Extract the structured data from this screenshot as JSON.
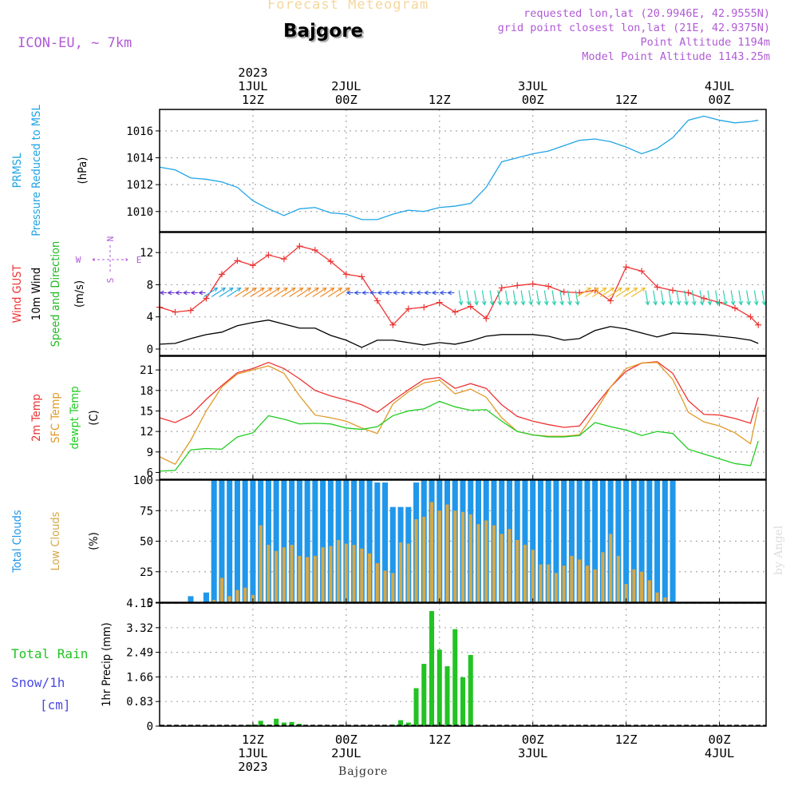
{
  "header": {
    "title": "Forecast Meteogram",
    "station": "Bajgore",
    "model": "ICON-EU, ~ 7km",
    "requested": "requested lon,lat (20.9946E, 42.9555N)",
    "grid_point": "grid point closest lon,lat (21E, 42.9375N)",
    "point_altitude": "Point Altitude 1194m",
    "model_altitude": "Model Point Altitude 1143.25m"
  },
  "watermark": "by Angel",
  "footer_station": "Bajgore",
  "colors": {
    "prmsl": "#1fa5e6",
    "gust": "#ee3333",
    "wind": "#000000",
    "wind_dir": "#22bb22",
    "temp2m": "#ee3333",
    "sfc": "#e09a2a",
    "dewpt": "#22cc22",
    "total_clouds": "#1f97ea",
    "low_clouds": "#d4a84a",
    "rain": "#22c322",
    "snow": "#4b4be6",
    "compass": "#b05ad6",
    "grid": "#999999"
  },
  "time_axis": {
    "start_hour": 0,
    "end_hour": 78,
    "top_labels": [
      {
        "hour": 12,
        "lines": [
          "2023",
          "1JUL",
          "12Z"
        ]
      },
      {
        "hour": 24,
        "lines": [
          "2JUL",
          "00Z"
        ]
      },
      {
        "hour": 36,
        "lines": [
          "12Z"
        ]
      },
      {
        "hour": 48,
        "lines": [
          "3JUL",
          "00Z"
        ]
      },
      {
        "hour": 60,
        "lines": [
          "12Z"
        ]
      },
      {
        "hour": 72,
        "lines": [
          "4JUL",
          "00Z"
        ]
      }
    ],
    "bottom_labels": [
      {
        "hour": 12,
        "lines": [
          "12Z",
          "1JUL",
          "2023"
        ]
      },
      {
        "hour": 24,
        "lines": [
          "00Z",
          "2JUL"
        ]
      },
      {
        "hour": 36,
        "lines": [
          "12Z"
        ]
      },
      {
        "hour": 48,
        "lines": [
          "00Z",
          "3JUL"
        ]
      },
      {
        "hour": 60,
        "lines": [
          "12Z"
        ]
      },
      {
        "hour": 72,
        "lines": [
          "00Z",
          "4JUL"
        ]
      }
    ]
  },
  "chart_data": [
    {
      "type": "line",
      "title": "PRMSL Pressure Reduced to MSL",
      "ylabel_lines": [
        {
          "text": "PRMSL",
          "color": "#1fa5e6"
        },
        {
          "text": "Pressure Reduced to MSL",
          "color": "#1fa5e6"
        },
        {
          "text": "(hPa)",
          "color": "#000000"
        }
      ],
      "ylim": [
        1008.5,
        1017.6
      ],
      "yticks": [
        "1010",
        "1012",
        "1014",
        "1016"
      ],
      "x": [
        0,
        2,
        4,
        6,
        8,
        10,
        12,
        14,
        16,
        18,
        20,
        22,
        24,
        26,
        28,
        30,
        32,
        34,
        36,
        38,
        40,
        42,
        44,
        46,
        48,
        50,
        52,
        54,
        56,
        58,
        60,
        62,
        64,
        66,
        68,
        70,
        72,
        74,
        76,
        77
      ],
      "series": [
        {
          "name": "PRMSL",
          "color": "#1fa5e6",
          "values": [
            1013.3,
            1013.1,
            1012.5,
            1012.4,
            1012.2,
            1011.8,
            1010.8,
            1010.2,
            1009.7,
            1010.2,
            1010.3,
            1009.9,
            1009.8,
            1009.4,
            1009.4,
            1009.8,
            1010.1,
            1010.0,
            1010.3,
            1010.4,
            1010.6,
            1011.8,
            1013.7,
            1014.0,
            1014.3,
            1014.5,
            1014.9,
            1015.3,
            1015.4,
            1015.2,
            1014.8,
            1014.3,
            1014.7,
            1015.5,
            1016.8,
            1017.1,
            1016.8,
            1016.6,
            1016.7,
            1016.8
          ]
        }
      ]
    },
    {
      "type": "line",
      "title": "Wind GUST / 10m Wind Speed and Direction",
      "ylabel_lines": [
        {
          "text": "Wind GUST",
          "color": "#ee3333"
        },
        {
          "text": "10m Wind",
          "color": "#000000"
        },
        {
          "text": "Speed and Direction",
          "color": "#22bb22"
        },
        {
          "text": "(m/s)",
          "color": "#000000"
        }
      ],
      "compass": {
        "n": "N",
        "e": "E",
        "s": "S",
        "w": "W"
      },
      "ylim": [
        -0.8,
        14.5
      ],
      "yticks": [
        "0",
        "4",
        "8",
        "12"
      ],
      "x": [
        0,
        2,
        4,
        6,
        8,
        10,
        12,
        14,
        16,
        18,
        20,
        22,
        24,
        26,
        28,
        30,
        32,
        34,
        36,
        38,
        40,
        42,
        44,
        46,
        48,
        50,
        52,
        54,
        56,
        58,
        60,
        62,
        64,
        66,
        68,
        70,
        72,
        74,
        76,
        77
      ],
      "series": [
        {
          "name": "Wind GUST",
          "color": "#ee3333",
          "marker": "+",
          "values": [
            5.2,
            4.6,
            4.8,
            6.3,
            9.3,
            11.0,
            10.4,
            11.7,
            11.2,
            12.8,
            12.3,
            10.9,
            9.3,
            9.0,
            6.0,
            3.0,
            5.0,
            5.2,
            5.8,
            4.6,
            5.3,
            3.8,
            7.6,
            7.9,
            8.1,
            7.8,
            7.1,
            7.0,
            7.3,
            6.0,
            10.2,
            9.7,
            7.7,
            7.3,
            7.0,
            6.3,
            5.8,
            5.1,
            4.0,
            3.0
          ]
        },
        {
          "name": "10m Wind",
          "color": "#000000",
          "values": [
            0.6,
            0.7,
            1.3,
            1.8,
            2.1,
            2.9,
            3.3,
            3.6,
            3.1,
            2.6,
            2.6,
            1.7,
            1.1,
            0.2,
            1.1,
            1.1,
            0.8,
            0.5,
            0.8,
            0.6,
            1.0,
            1.6,
            1.8,
            1.8,
            1.8,
            1.6,
            1.1,
            1.3,
            2.3,
            2.8,
            2.5,
            2.0,
            1.5,
            2.0,
            1.9,
            1.8,
            1.6,
            1.4,
            1.1,
            0.7
          ]
        }
      ],
      "wind_barbs": [
        {
          "from_hour": 0,
          "to_hour": 6,
          "dir": "W",
          "color": "#6633cc"
        },
        {
          "from_hour": 6,
          "to_hour": 10,
          "dir": "SW",
          "color": "#22aadd"
        },
        {
          "from_hour": 10,
          "to_hour": 24,
          "dir": "SW",
          "color": "#ee8822"
        },
        {
          "from_hour": 24,
          "to_hour": 38,
          "dir": "W",
          "color": "#3355dd"
        },
        {
          "from_hour": 38,
          "to_hour": 54,
          "dir": "N",
          "color": "#22ccaa"
        },
        {
          "from_hour": 54,
          "to_hour": 62,
          "dir": "SW",
          "color": "#eebb22"
        },
        {
          "from_hour": 62,
          "to_hour": 78,
          "dir": "N",
          "color": "#22ccaa"
        }
      ]
    },
    {
      "type": "line",
      "title": "Temperatures",
      "ylabel_lines": [
        {
          "text": "2m Temp",
          "color": "#ee3333"
        },
        {
          "text": "SFC Temp",
          "color": "#e09a2a"
        },
        {
          "text": "dewpt Temp",
          "color": "#22cc22"
        },
        {
          "text": "(C)",
          "color": "#000000"
        }
      ],
      "ylim": [
        5,
        23
      ],
      "yticks": [
        "6",
        "9",
        "12",
        "15",
        "18",
        "21"
      ],
      "x": [
        0,
        2,
        4,
        6,
        8,
        10,
        12,
        14,
        16,
        18,
        20,
        22,
        24,
        26,
        28,
        30,
        32,
        34,
        36,
        38,
        40,
        42,
        44,
        46,
        48,
        50,
        52,
        54,
        56,
        58,
        60,
        62,
        64,
        66,
        68,
        70,
        72,
        74,
        76,
        77
      ],
      "series": [
        {
          "name": "2m Temp",
          "color": "#ee3333",
          "values": [
            14.0,
            13.3,
            14.4,
            16.7,
            18.7,
            20.6,
            21.2,
            22.1,
            21.2,
            19.7,
            18.0,
            17.2,
            16.6,
            15.9,
            14.8,
            16.5,
            18.1,
            19.6,
            19.9,
            18.3,
            19.0,
            18.3,
            15.9,
            14.2,
            13.5,
            13.0,
            12.6,
            12.8,
            15.7,
            18.5,
            20.8,
            22.0,
            22.2,
            20.5,
            16.5,
            14.5,
            14.4,
            13.9,
            13.2,
            17.0
          ]
        },
        {
          "name": "SFC Temp",
          "color": "#e09a2a",
          "values": [
            8.3,
            7.2,
            10.7,
            15.0,
            18.5,
            20.4,
            21.0,
            21.6,
            20.5,
            17.2,
            14.4,
            14.0,
            13.5,
            12.5,
            11.7,
            16.0,
            17.8,
            19.1,
            19.5,
            17.5,
            18.2,
            17.0,
            14.0,
            12.0,
            11.5,
            11.3,
            11.3,
            11.5,
            14.8,
            18.5,
            21.2,
            22.0,
            22.1,
            19.6,
            14.8,
            13.4,
            12.8,
            11.8,
            10.2,
            15.6
          ]
        },
        {
          "name": "dewpt Temp",
          "color": "#22cc22",
          "values": [
            6.2,
            6.3,
            9.3,
            9.5,
            9.4,
            11.2,
            11.8,
            14.3,
            13.8,
            13.1,
            13.2,
            13.1,
            12.5,
            12.3,
            12.7,
            14.3,
            15.0,
            15.3,
            16.4,
            15.6,
            15.1,
            15.2,
            13.5,
            12.0,
            11.5,
            11.2,
            11.2,
            11.4,
            13.3,
            12.7,
            12.2,
            11.4,
            12.0,
            11.7,
            9.4,
            8.7,
            8.0,
            7.3,
            7.0,
            10.6
          ]
        }
      ]
    },
    {
      "type": "bar",
      "title": "Clouds",
      "ylabel_lines": [
        {
          "text": "Total Clouds",
          "color": "#1f97ea"
        },
        {
          "text": "Low Clouds",
          "color": "#d4a84a"
        },
        {
          "text": "(%)",
          "color": "#000000"
        }
      ],
      "ylim": [
        0,
        100
      ],
      "yticks": [
        "0",
        "25",
        "50",
        "75",
        "100"
      ],
      "x": [
        1,
        2,
        3,
        4,
        5,
        6,
        7,
        8,
        9,
        10,
        11,
        12,
        13,
        14,
        15,
        16,
        17,
        18,
        19,
        20,
        21,
        22,
        23,
        24,
        25,
        26,
        27,
        28,
        29,
        30,
        31,
        32,
        33,
        34,
        35,
        36,
        37,
        38,
        39,
        40,
        41,
        42,
        43,
        44,
        45,
        46,
        47,
        48,
        49,
        50,
        51,
        52,
        53,
        54,
        55,
        56,
        57,
        58,
        59,
        60,
        61,
        62,
        63,
        64,
        65,
        66,
        67,
        68,
        69,
        70,
        71,
        72,
        73,
        74,
        75,
        76,
        77
      ],
      "series": [
        {
          "name": "Total Clouds",
          "color": "#1f97ea",
          "values": [
            0,
            0,
            0,
            5,
            0,
            8,
            100,
            100,
            100,
            100,
            100,
            100,
            100,
            100,
            100,
            100,
            100,
            100,
            100,
            100,
            100,
            100,
            100,
            100,
            100,
            100,
            100,
            98,
            98,
            78,
            78,
            78,
            98,
            100,
            100,
            100,
            100,
            100,
            100,
            100,
            100,
            100,
            100,
            100,
            100,
            100,
            100,
            100,
            100,
            100,
            100,
            100,
            100,
            100,
            100,
            100,
            100,
            100,
            100,
            100,
            100,
            100,
            100,
            100,
            100,
            100,
            0,
            0,
            0,
            0,
            0,
            0,
            0,
            0,
            0,
            0,
            0
          ]
        },
        {
          "name": "Low Clouds",
          "color": "#d4a84a",
          "values": [
            0,
            0,
            0,
            0,
            0,
            0,
            2,
            20,
            5,
            10,
            12,
            6,
            63,
            47,
            42,
            45,
            47,
            38,
            37,
            38,
            45,
            46,
            51,
            48,
            47,
            44,
            40,
            32,
            26,
            24,
            49,
            48,
            68,
            70,
            82,
            75,
            80,
            75,
            74,
            72,
            64,
            67,
            63,
            56,
            60,
            51,
            47,
            43,
            31,
            31,
            24,
            30,
            38,
            35,
            30,
            27,
            41,
            56,
            38,
            15,
            27,
            25,
            18,
            8,
            4,
            0,
            0,
            0,
            0,
            0,
            0,
            0,
            0,
            0,
            0,
            0,
            0
          ]
        }
      ]
    },
    {
      "type": "bar",
      "title": "Precipitation",
      "ylabel_lines": [
        {
          "text": "1hr Precip (mm)",
          "color": "#000000"
        }
      ],
      "left_labels": [
        {
          "text": "Total  Rain",
          "color": "#22c322"
        },
        {
          "text": "Snow/1h",
          "color": "#4b4be6"
        },
        {
          "text": "[cm]",
          "color": "#4b4be6"
        }
      ],
      "ylim": [
        0,
        4.15
      ],
      "yticks": [
        "0",
        "0.83",
        "1.66",
        "2.49",
        "3.32",
        "4.15"
      ],
      "x": [
        1,
        2,
        3,
        4,
        5,
        6,
        7,
        8,
        9,
        10,
        11,
        12,
        13,
        14,
        15,
        16,
        17,
        18,
        19,
        20,
        21,
        22,
        23,
        24,
        25,
        26,
        27,
        28,
        29,
        30,
        31,
        32,
        33,
        34,
        35,
        36,
        37,
        38,
        39,
        40
      ],
      "series": [
        {
          "name": "Total Rain",
          "color": "#22c322",
          "values": [
            0,
            0,
            0,
            0,
            0,
            0,
            0,
            0,
            0,
            0,
            0,
            0.05,
            0.18,
            0.05,
            0.25,
            0.12,
            0.14,
            0.08,
            0,
            0,
            0,
            0,
            0,
            0,
            0,
            0,
            0,
            0,
            0,
            0.05,
            0.2,
            0.12,
            1.28,
            2.1,
            3.88,
            2.58,
            2.02,
            3.27,
            1.65,
            2.4
          ]
        }
      ]
    }
  ]
}
